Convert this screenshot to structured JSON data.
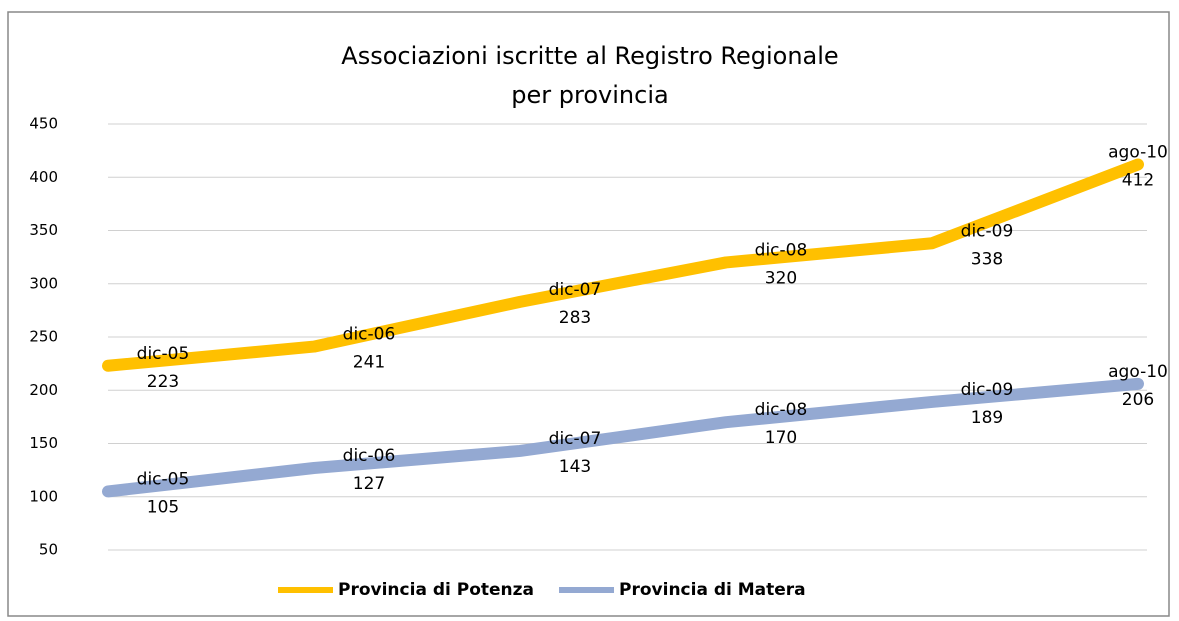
{
  "chart_data": {
    "type": "line",
    "title": [
      "Associazioni iscritte al Registro Regionale",
      "per provincia"
    ],
    "categories": [
      "dic-05",
      "dic-06",
      "dic-07",
      "dic-08",
      "dic-09",
      "ago-10"
    ],
    "series": [
      {
        "name": "Provincia di Potenza",
        "color": "#ffc000",
        "values": [
          223,
          241,
          283,
          320,
          338,
          412
        ]
      },
      {
        "name": "Provincia di Matera",
        "color": "#94a9d2",
        "values": [
          105,
          127,
          143,
          170,
          189,
          206
        ]
      }
    ],
    "ylim": [
      50,
      450
    ],
    "yticks": [
      50,
      100,
      150,
      200,
      250,
      300,
      350,
      400,
      450
    ],
    "grid": true,
    "legend": "bottom"
  }
}
